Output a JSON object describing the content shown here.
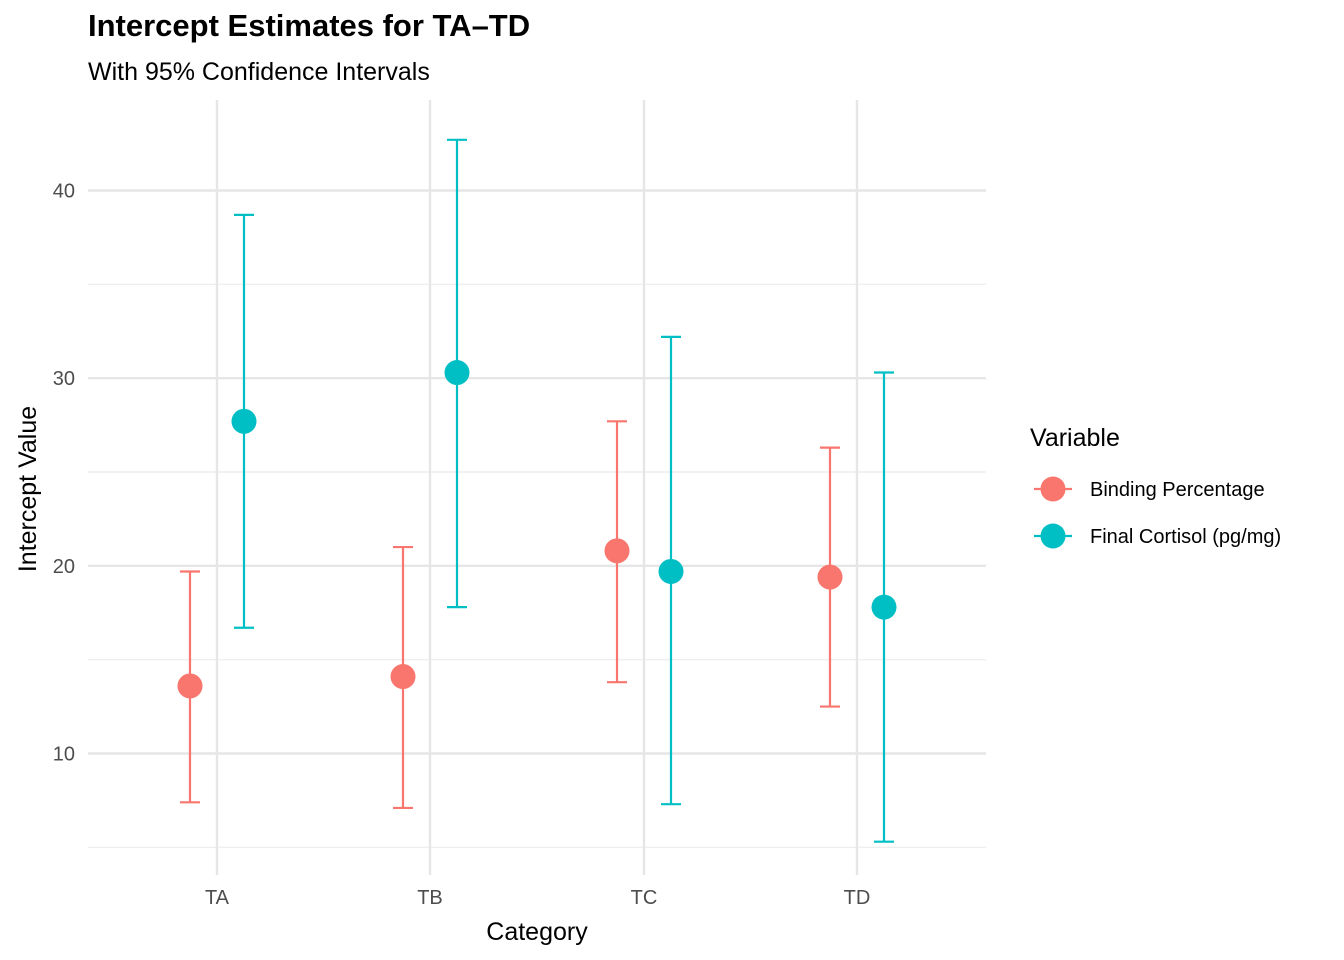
{
  "chart_data": {
    "type": "scatter",
    "title": "Intercept Estimates for TA–TD",
    "subtitle": "With 95% Confidence Intervals",
    "xlabel": "Category",
    "ylabel": "Intercept Value",
    "categories": [
      "TA",
      "TB",
      "TC",
      "TD"
    ],
    "y_ticks": [
      10,
      20,
      30,
      40
    ],
    "ylim": [
      3.5,
      45
    ],
    "grid": true,
    "legend": {
      "title": "Variable",
      "placement": "right"
    },
    "series": [
      {
        "name": "Binding Percentage",
        "color": "#F8766D",
        "values": [
          13.6,
          14.1,
          20.8,
          19.4
        ],
        "lower": [
          7.4,
          7.1,
          13.8,
          12.5
        ],
        "upper": [
          19.7,
          21.0,
          27.7,
          26.3
        ]
      },
      {
        "name": "Final Cortisol (pg/mg)",
        "color": "#00BFC4",
        "values": [
          27.7,
          30.3,
          19.7,
          17.8
        ],
        "lower": [
          16.7,
          17.8,
          7.3,
          5.3
        ],
        "upper": [
          38.7,
          42.7,
          32.2,
          30.3
        ]
      }
    ]
  }
}
